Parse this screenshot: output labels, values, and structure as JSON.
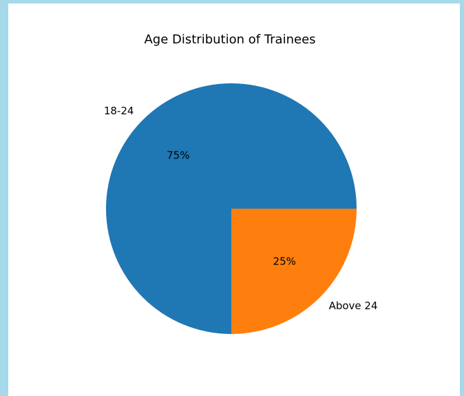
{
  "chart_data": {
    "type": "pie",
    "title": "Age Distribution of Trainees",
    "categories": [
      "18-24",
      "Above 24"
    ],
    "values": [
      75,
      25
    ],
    "value_labels": [
      "75%",
      "25%"
    ],
    "colors": [
      "#1f77b4",
      "#ff7f0e"
    ]
  }
}
